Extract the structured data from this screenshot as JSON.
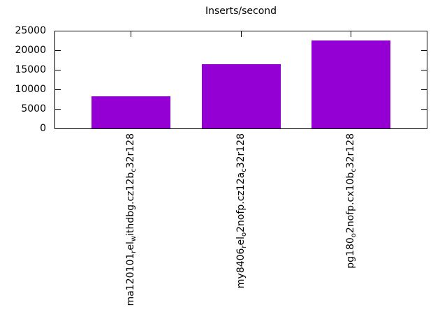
{
  "colors": {
    "bar": "#9400d3",
    "axis": "#000000",
    "background": "#ffffff",
    "text": "#000000"
  },
  "chart_data": {
    "type": "bar",
    "title": "Inserts/second",
    "categories": [
      "ma120101_rel_withdbg.cz12b_c32r128",
      "my8406_rel_o2nofp.cz12a_c32r128",
      "pg180_o2nofp.cx10b_c32r128"
    ],
    "categories_display": [
      [
        {
          "t": "ma120101"
        },
        {
          "t": "r",
          "sub": true
        },
        {
          "t": "el"
        },
        {
          "t": "w",
          "sub": true
        },
        {
          "t": "ithdbg.cz12b"
        },
        {
          "t": "c",
          "sub": true
        },
        {
          "t": "32r128"
        }
      ],
      [
        {
          "t": "my8406"
        },
        {
          "t": "r",
          "sub": true
        },
        {
          "t": "el"
        },
        {
          "t": "o",
          "sub": true
        },
        {
          "t": "2nofp.cz12a"
        },
        {
          "t": "c",
          "sub": true
        },
        {
          "t": "32r128"
        }
      ],
      [
        {
          "t": "pg180"
        },
        {
          "t": "o",
          "sub": true
        },
        {
          "t": "2nofp.cx10b"
        },
        {
          "t": "c",
          "sub": true
        },
        {
          "t": "32r128"
        }
      ]
    ],
    "values": [
      8300,
      16400,
      22500
    ],
    "ylim": [
      0,
      25000
    ],
    "yticks": [
      0,
      5000,
      10000,
      15000,
      20000,
      25000
    ],
    "ytick_labels": [
      "0",
      "5000",
      "10000",
      "15000",
      "20000",
      "25000"
    ],
    "xlabel": "",
    "ylabel": "",
    "grid": false,
    "legend": "none",
    "x_tick_rotation": -90,
    "bar_color": "#9400d3"
  }
}
